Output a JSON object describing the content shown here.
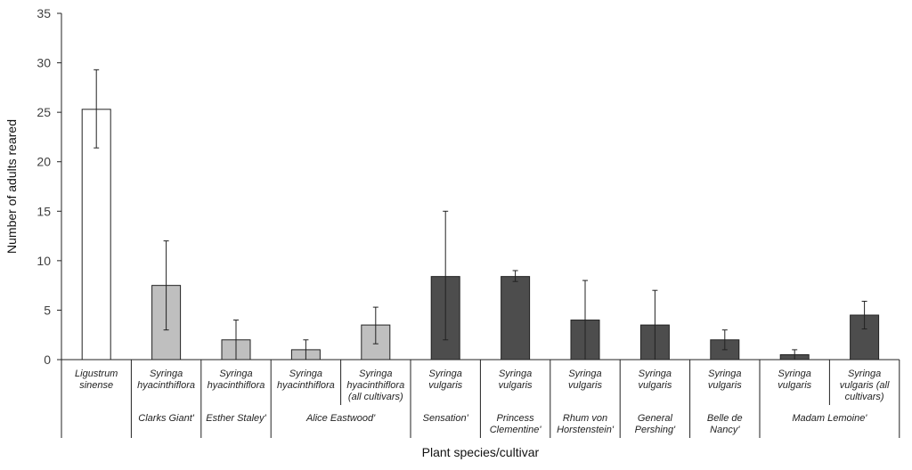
{
  "chart_data": {
    "type": "bar",
    "ylabel": "Number of adults reared",
    "xlabel": "Plant species/cultivar",
    "ylim": [
      0,
      35
    ],
    "yticks": [
      "0",
      "5",
      "10",
      "15",
      "20",
      "25",
      "30",
      "35"
    ],
    "grid": false,
    "colors": {
      "white": "#ffffff",
      "light": "#bfbfbf",
      "dark": "#4d4d4d",
      "stroke": "#222222"
    },
    "categories": [
      {
        "line1": "Ligustrum",
        "line2": "sinense",
        "value": 25.3,
        "err_low": 21.4,
        "err_high": 29.3,
        "fill": "white"
      },
      {
        "line1": "Syringa",
        "line2": "hyacinthiflora",
        "value": 7.5,
        "err_low": 3.0,
        "err_high": 12.0,
        "fill": "light"
      },
      {
        "line1": "Syringa",
        "line2": "hyacinthiflora",
        "value": 2.0,
        "err_low": 0.0,
        "err_high": 4.0,
        "fill": "light"
      },
      {
        "line1": "Syringa",
        "line2": "hyacinthiflora",
        "value": 1.0,
        "err_low": 0.0,
        "err_high": 2.0,
        "fill": "light"
      },
      {
        "line1": "Syringa",
        "line2": "hyacinthiflora",
        "line3": "(all cultivars)",
        "value": 3.5,
        "err_low": 1.6,
        "err_high": 5.3,
        "fill": "light"
      },
      {
        "line1": "Syringa",
        "line2": "vulgaris",
        "value": 8.4,
        "err_low": 2.0,
        "err_high": 15.0,
        "fill": "dark"
      },
      {
        "line1": "Syringa",
        "line2": "vulgaris",
        "value": 8.4,
        "err_low": 7.9,
        "err_high": 9.0,
        "fill": "dark"
      },
      {
        "line1": "Syringa",
        "line2": "vulgaris",
        "value": 4.0,
        "err_low": 0.0,
        "err_high": 8.0,
        "fill": "dark"
      },
      {
        "line1": "Syringa",
        "line2": "vulgaris",
        "value": 3.5,
        "err_low": 0.0,
        "err_high": 7.0,
        "fill": "dark"
      },
      {
        "line1": "Syringa",
        "line2": "vulgaris",
        "value": 2.0,
        "err_low": 1.0,
        "err_high": 3.0,
        "fill": "dark"
      },
      {
        "line1": "Syringa",
        "line2": "vulgaris",
        "value": 0.5,
        "err_low": 0.0,
        "err_high": 1.0,
        "fill": "dark"
      },
      {
        "line1": "Syringa",
        "line2": "vulgaris (all",
        "line3": "cultivars)",
        "value": 4.5,
        "err_low": 3.1,
        "err_high": 5.9,
        "fill": "dark"
      }
    ],
    "cultivars": [
      {
        "start": 0,
        "end": 0,
        "lines": []
      },
      {
        "start": 1,
        "end": 1,
        "lines": [
          "Clarks Giant'"
        ]
      },
      {
        "start": 2,
        "end": 2,
        "lines": [
          "Esther Staley'"
        ]
      },
      {
        "start": 3,
        "end": 4,
        "lines": [
          "Alice Eastwood'"
        ]
      },
      {
        "start": 5,
        "end": 5,
        "lines": [
          "Sensation'"
        ]
      },
      {
        "start": 6,
        "end": 6,
        "lines": [
          "Princess",
          "Clementine'"
        ]
      },
      {
        "start": 7,
        "end": 7,
        "lines": [
          "Rhum von",
          "Horstenstein'"
        ]
      },
      {
        "start": 8,
        "end": 8,
        "lines": [
          "General",
          "Pershing'"
        ]
      },
      {
        "start": 9,
        "end": 9,
        "lines": [
          "Belle de",
          "Nancy'"
        ]
      },
      {
        "start": 10,
        "end": 11,
        "lines": [
          "Madam Lemoine'"
        ]
      }
    ]
  }
}
